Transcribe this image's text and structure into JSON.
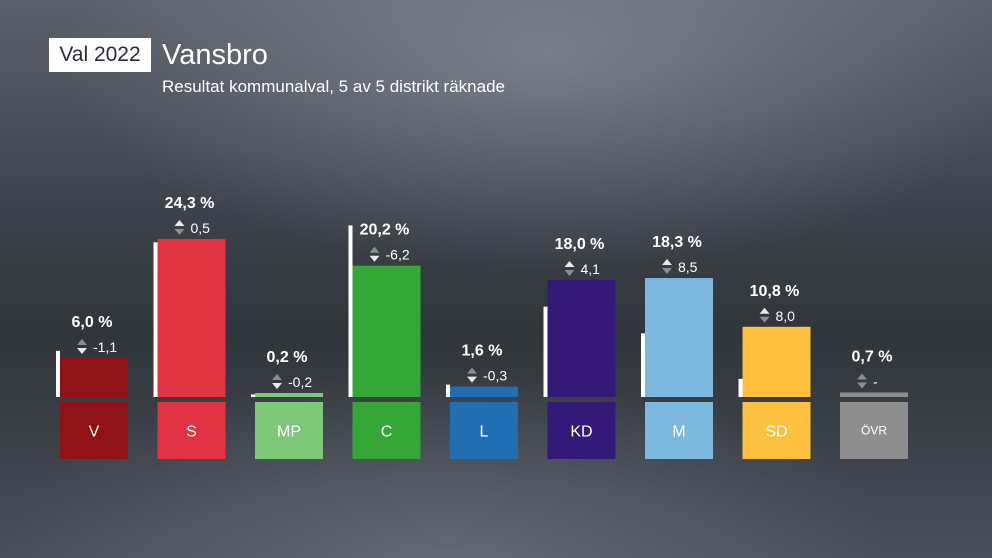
{
  "header": {
    "tag": "Val 2022",
    "title": "Vansbro",
    "subtitle": "Resultat kommunalval, 5 av 5 distrikt räknade"
  },
  "chart_data": {
    "type": "bar",
    "categories": [
      "V",
      "S",
      "MP",
      "C",
      "L",
      "KD",
      "M",
      "SD",
      "ÖVR"
    ],
    "values": [
      6.0,
      24.3,
      0.2,
      20.2,
      1.6,
      18.0,
      18.3,
      10.8,
      0.7
    ],
    "previous_values": [
      7.1,
      23.8,
      0.4,
      26.4,
      1.9,
      13.9,
      9.8,
      2.8,
      null
    ],
    "value_labels": [
      "6,0 %",
      "24,3 %",
      "0,2 %",
      "20,2 %",
      "1,6 %",
      "18,0 %",
      "18,3 %",
      "10,8 %",
      "0,7 %"
    ],
    "change_labels": [
      "-1,1",
      "0,5",
      "-0,2",
      "-6,2",
      "-0,3",
      "4,1",
      "8,5",
      "8,0",
      "-"
    ],
    "colors": [
      "#8e1216",
      "#e23344",
      "#7ec87a",
      "#34a737",
      "#1f6fb2",
      "#331a78",
      "#7db8df",
      "#fdc13f",
      "#8e8e8e"
    ],
    "label_colors": [
      "#ffffff",
      "#ffffff",
      "#ffffff",
      "#ffffff",
      "#ffffff",
      "#ffffff",
      "#ffffff",
      "#ffffff",
      "#ffffff"
    ],
    "previous_bar_color": "#ffffff",
    "ylim": [
      0,
      30
    ],
    "xlabel": "",
    "ylabel": "",
    "grid": false
  }
}
